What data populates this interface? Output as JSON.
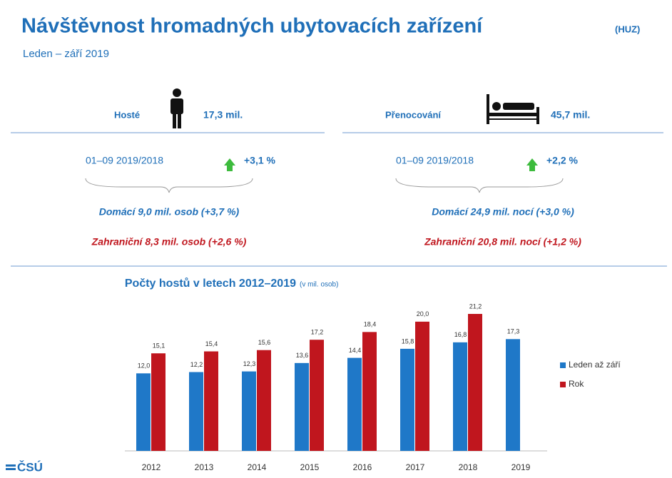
{
  "header": {
    "title": "Návštěvnost hromadných ubytovacích zařízení",
    "title_note": "(HUZ)",
    "subtitle": "Leden – září 2019"
  },
  "panels": [
    {
      "label": "Hosté",
      "total": "17,3 mil.",
      "period": "01–09 2019/2018",
      "change": "+3,1 %",
      "domestic": "Domácí 9,0 mil. osob (+3,7 %)",
      "foreign": "Zahraniční 8,3 mil. osob (+2,6 %)"
    },
    {
      "label": "Přenocování",
      "total": "45,7 mil.",
      "period": "01–09 2019/2018",
      "change": "+2,2 %",
      "domestic": "Domácí 24,9 mil. nocí (+3,0 %)",
      "foreign": "Zahraniční 20,8 mil. nocí (+1,2 %)"
    }
  ],
  "logo": "ČSÚ",
  "chart_data": {
    "type": "bar",
    "title": "Počty hostů v letech 2012–2019",
    "subtitle": "(v mil. osob)",
    "categories": [
      "2012",
      "2013",
      "2014",
      "2015",
      "2016",
      "2017",
      "2018",
      "2019"
    ],
    "series": [
      {
        "name": "Leden až září",
        "color": "#1f78c8",
        "values": [
          12.0,
          12.2,
          12.3,
          13.6,
          14.4,
          15.8,
          16.8,
          17.3
        ],
        "value_labels": [
          "12,0",
          "12,2",
          "12,3",
          "13,6",
          "14,4",
          "15,8",
          "16,8",
          "17,3"
        ]
      },
      {
        "name": "Rok",
        "color": "#c0161e",
        "values": [
          15.1,
          15.4,
          15.6,
          17.2,
          18.4,
          20.0,
          21.2,
          null
        ],
        "value_labels": [
          "15,1",
          "15,4",
          "15,6",
          "17,2",
          "18,4",
          "20,0",
          "21,2",
          null
        ]
      }
    ],
    "ylim": [
      0,
      22
    ],
    "legend": "right"
  }
}
